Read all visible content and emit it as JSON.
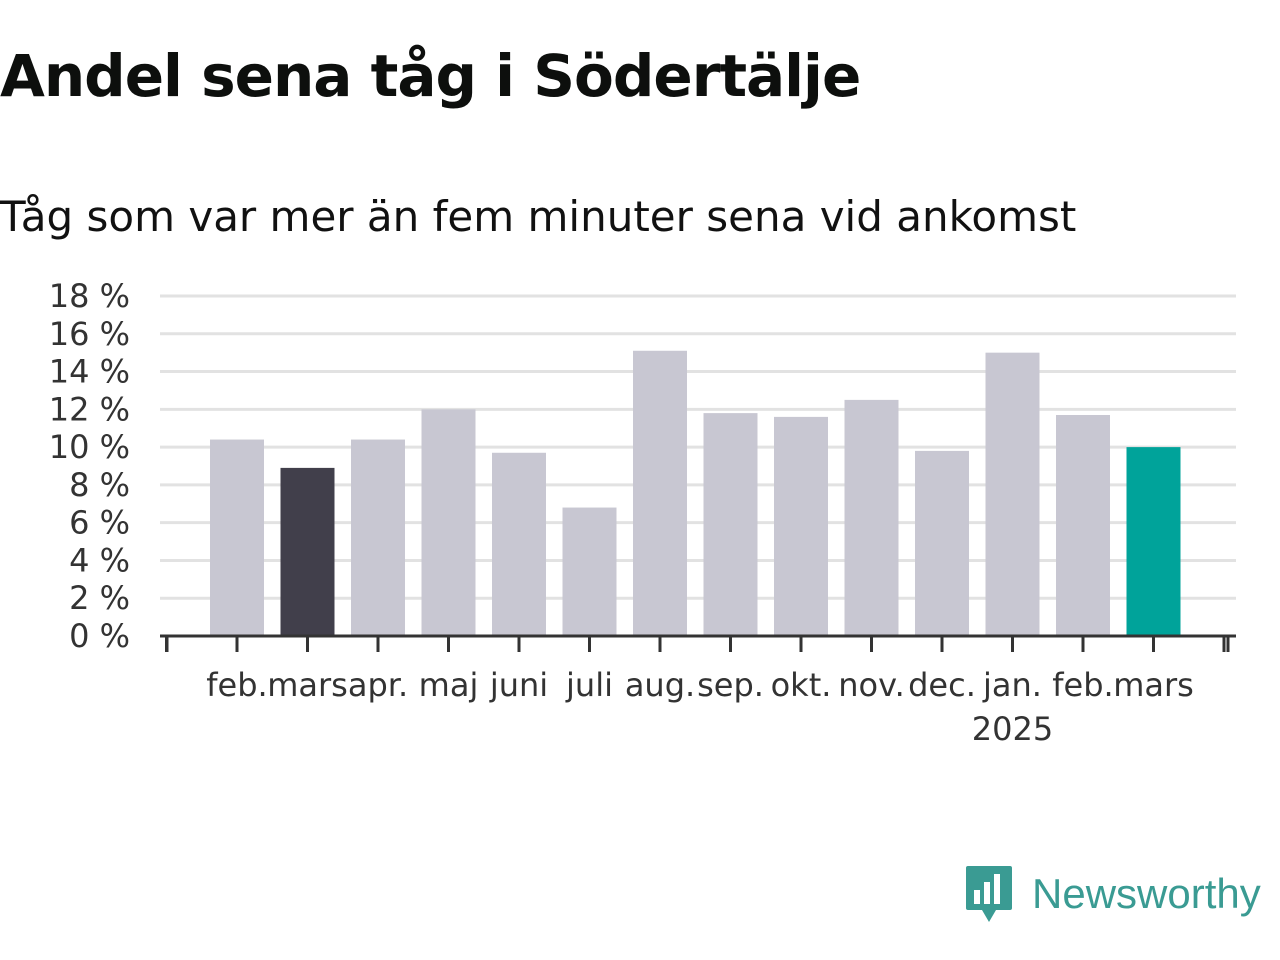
{
  "header": {
    "title": "Andel sena tåg i Södertälje",
    "subtitle": "Tåg som var mer än fem minuter sena vid ankomst"
  },
  "brand": {
    "name": "Newsworthy",
    "color": "#3a9b93"
  },
  "chart_data": {
    "type": "bar",
    "categories": [
      "feb.",
      "mars",
      "apr.",
      "maj",
      "juni",
      "juli",
      "aug.",
      "sep.",
      "okt.",
      "nov.",
      "dec.",
      "jan.",
      "feb.",
      "mars"
    ],
    "category_sublabels": [
      "",
      "",
      "",
      "",
      "",
      "",
      "",
      "",
      "",
      "",
      "",
      "2025",
      "",
      ""
    ],
    "values": [
      10.4,
      8.9,
      10.4,
      12.0,
      9.7,
      6.8,
      15.1,
      11.8,
      11.6,
      12.5,
      9.8,
      15.0,
      11.7,
      10.0
    ],
    "bar_colors": [
      "#c8c7d2",
      "#413f4b",
      "#c8c7d2",
      "#c8c7d2",
      "#c8c7d2",
      "#c8c7d2",
      "#c8c7d2",
      "#c8c7d2",
      "#c8c7d2",
      "#c8c7d2",
      "#c8c7d2",
      "#c8c7d2",
      "#c8c7d2",
      "#00a39a"
    ],
    "y_ticks": [
      "0 %",
      "2 %",
      "4 %",
      "6 %",
      "8 %",
      "10 %",
      "12 %",
      "14 %",
      "16 %",
      "18 %"
    ],
    "ylim": [
      0,
      18
    ],
    "grid": true,
    "legend": "none"
  }
}
